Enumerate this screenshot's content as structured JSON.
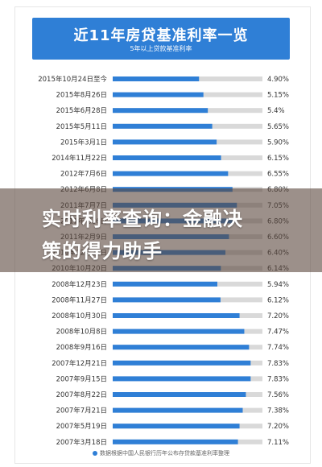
{
  "header": {
    "title": "近11年房贷基准利率一览",
    "subtitle": "5年以上贷款基准利率"
  },
  "overlay": {
    "line1": "实时利率查询：金融决",
    "line2": "策的得力助手"
  },
  "footer": {
    "note": "数据根据中国人民银行历年公布存贷款基准利率整理"
  },
  "colors": {
    "accent": "#2f7fd6",
    "track": "#d9d9d9"
  },
  "chart_data": {
    "type": "bar",
    "orientation": "horizontal",
    "title": "近11年房贷基准利率一览",
    "subtitle": "5年以上贷款基准利率",
    "categories": [
      "2015年10月24日至今",
      "2015年8月26日",
      "2015年6月28日",
      "2015年5月11日",
      "2015年3月1日",
      "2014年11月22日",
      "2012年7月6日",
      "2012年6月8日",
      "2011年7月7日",
      "2011年4月6日",
      "2011年2月9日",
      "2010年12月26日",
      "2010年10月20日",
      "2008年12月23日",
      "2008年11月27日",
      "2008年10月30日",
      "2008年10月8日",
      "2008年9月16日",
      "2007年12月21日",
      "2007年9月15日",
      "2007年8月22日",
      "2007年7月21日",
      "2007年5月19日",
      "2007年3月18日"
    ],
    "values": [
      4.9,
      5.15,
      5.4,
      5.65,
      5.9,
      6.15,
      6.55,
      6.8,
      7.05,
      6.8,
      6.6,
      6.4,
      6.14,
      5.94,
      6.12,
      7.2,
      7.47,
      7.74,
      7.83,
      7.83,
      7.56,
      7.38,
      7.2,
      7.11
    ],
    "value_labels": [
      "4.90%",
      "5.15%",
      "5.4%",
      "5.65%",
      "5.90%",
      "6.15%",
      "6.55%",
      "6.80%",
      "7.05%",
      "6.80%",
      "6.60%",
      "6.40%",
      "6.14%",
      "5.94%",
      "6.12%",
      "7.20%",
      "7.47%",
      "7.74%",
      "7.83%",
      "7.83%",
      "7.56%",
      "7.38%",
      "7.20%",
      "7.11%"
    ],
    "xlim": [
      0,
      8.5
    ],
    "grid": false,
    "legend": "none"
  }
}
